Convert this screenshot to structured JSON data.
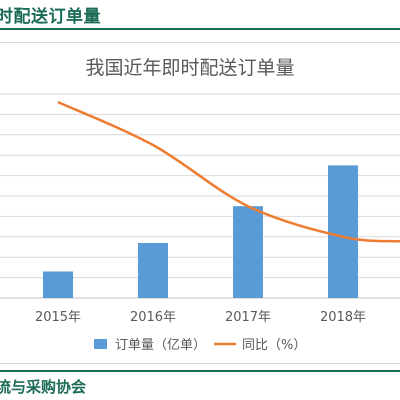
{
  "header": {
    "title": "时配送订单量"
  },
  "footer": {
    "source": "流与采购协会"
  },
  "colors": {
    "accent": "#1a6b57",
    "bar": "#5b9bd5",
    "line": "#ed7d31"
  },
  "chart_data": {
    "type": "bar",
    "title": "我国近年即时配送订单量",
    "categories": [
      "2015年",
      "2016年",
      "2017年",
      "2018年"
    ],
    "series": [
      {
        "name": "订单量（亿单）",
        "kind": "bar",
        "values": [
          13,
          27,
          45,
          65
        ]
      },
      {
        "name": "同比（%）",
        "kind": "line",
        "values": [
          96,
          75,
          45,
          30
        ]
      }
    ],
    "y_bar_range": [
      0,
      100
    ],
    "y_line_range": [
      0,
      100
    ],
    "grid": true,
    "legend": "bottom"
  }
}
